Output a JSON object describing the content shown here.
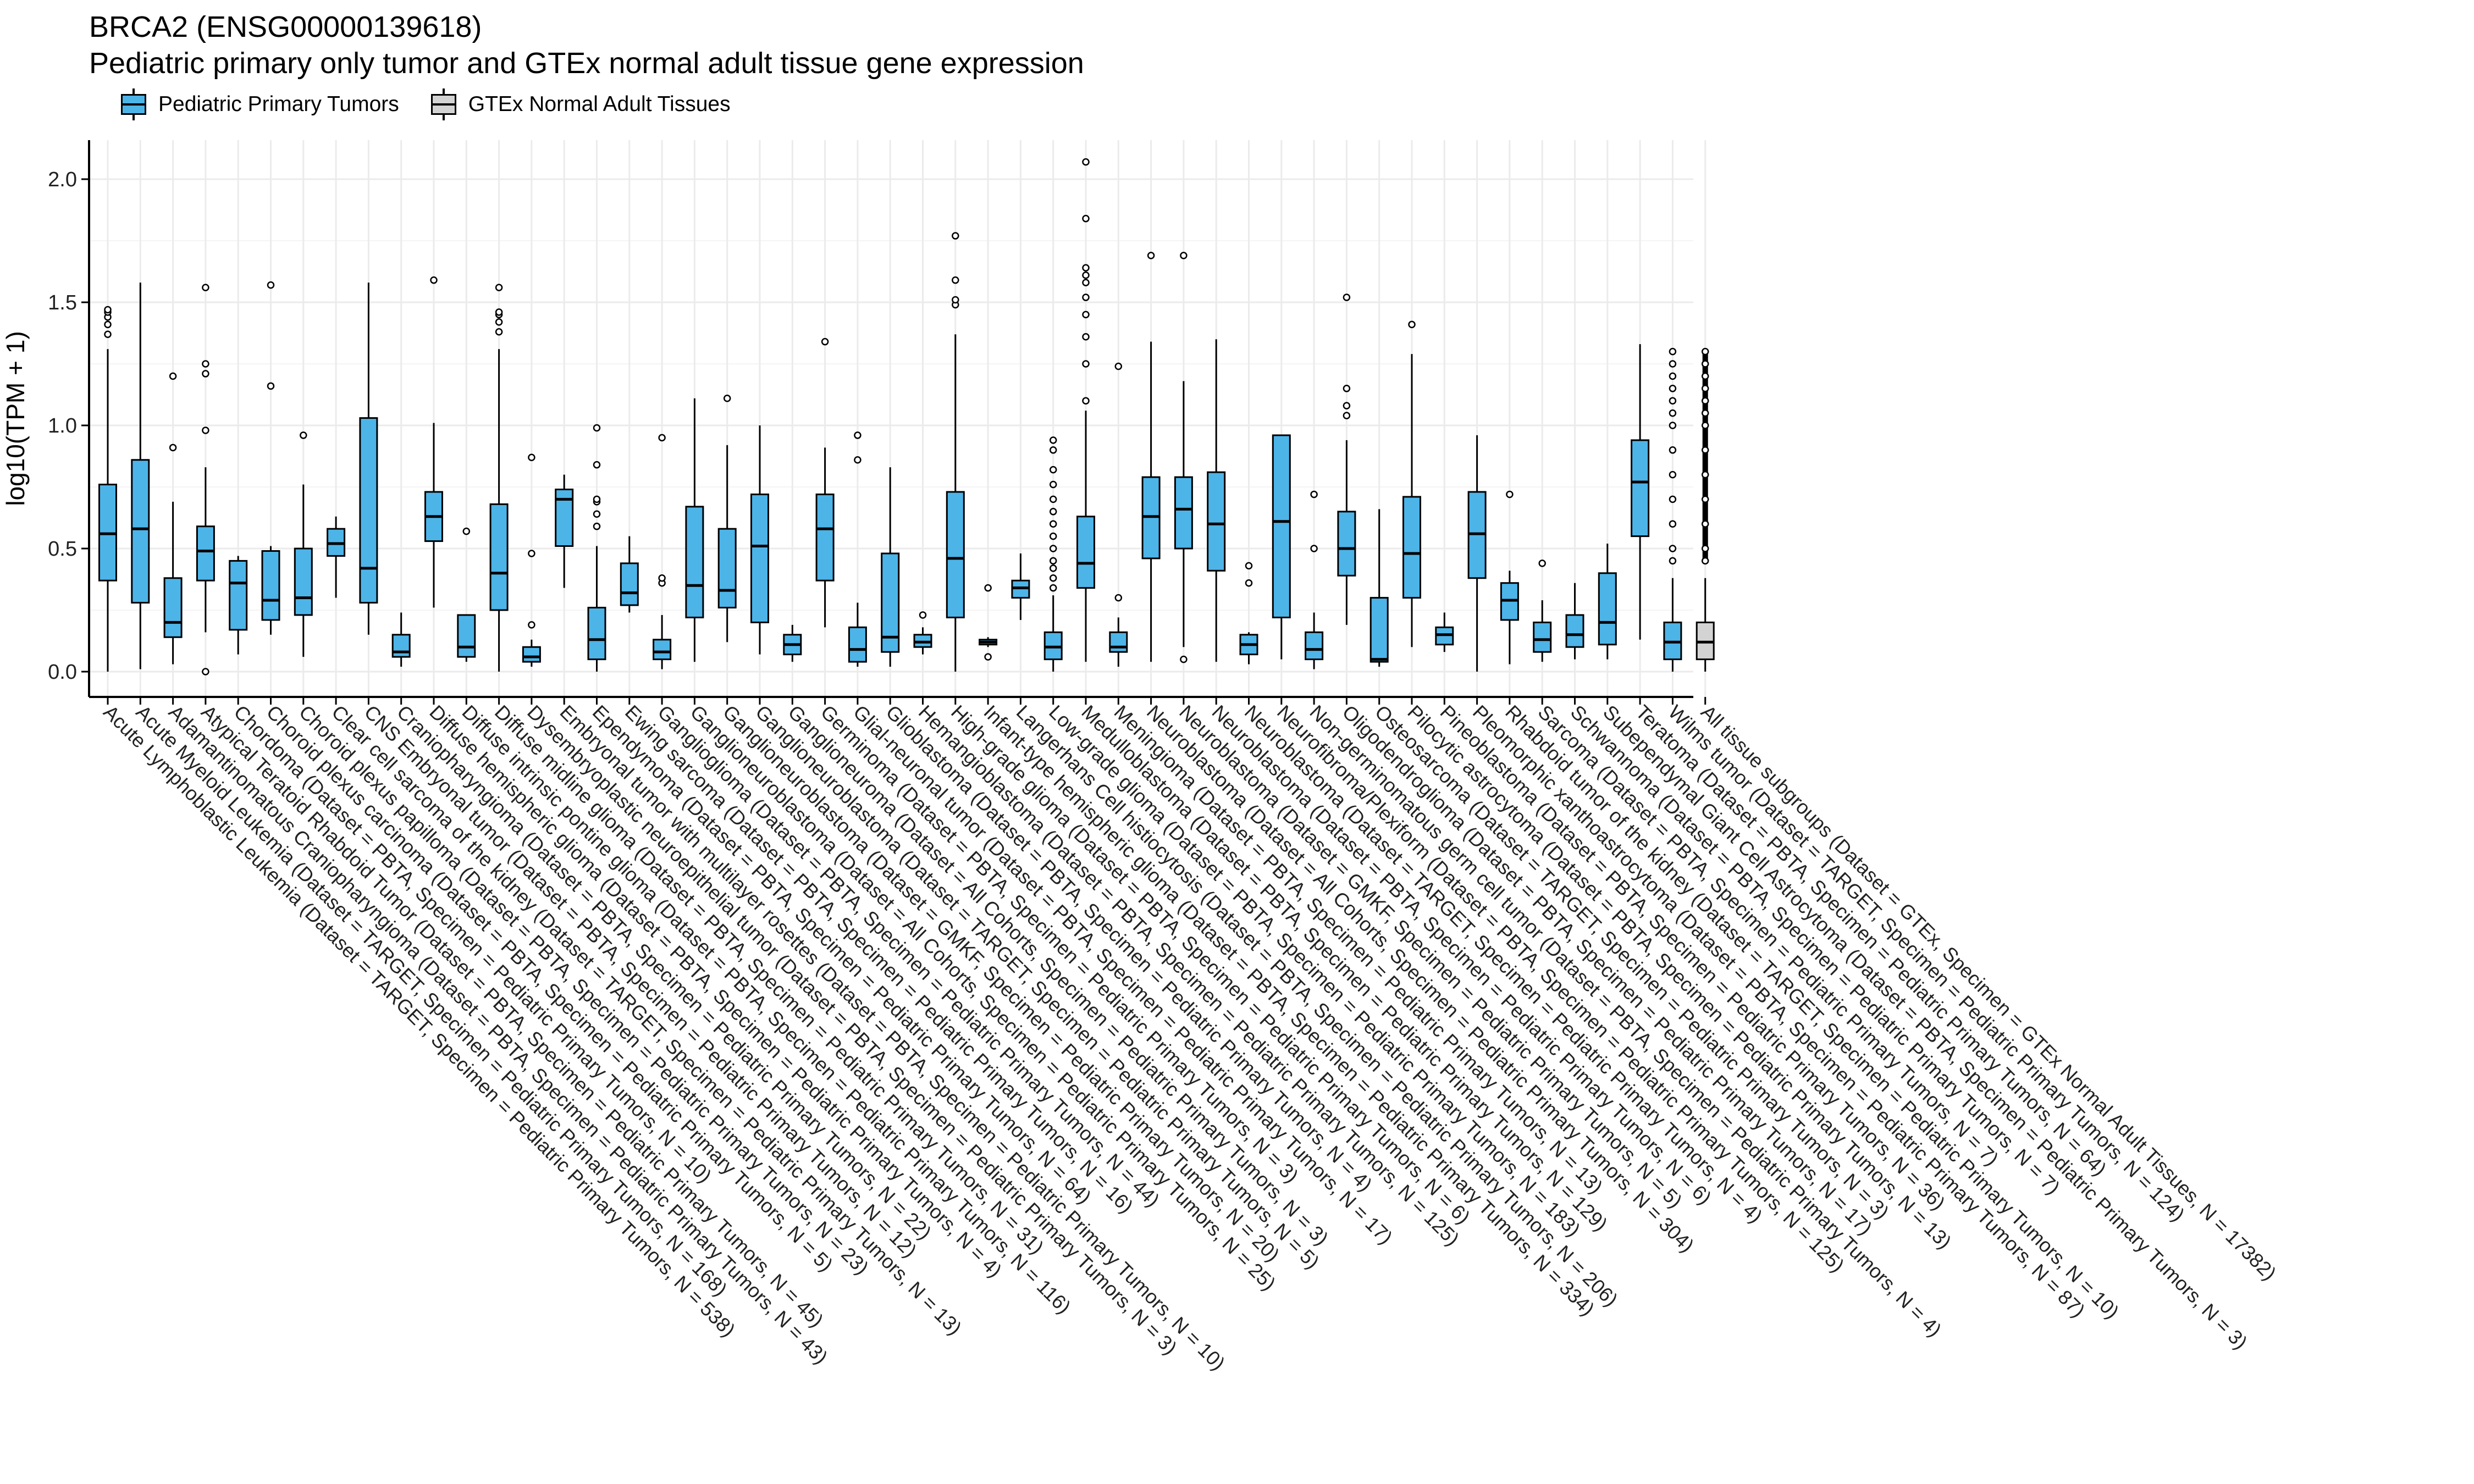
{
  "title_lines": [
    "BRCA2 (ENSG00000139618)",
    "Pediatric primary only tumor and GTEx normal adult tissue gene expression"
  ],
  "legend": [
    {
      "label": "Pediatric Primary Tumors",
      "color": "#4DB4E8"
    },
    {
      "label": "GTEx Normal Adult Tissues",
      "color": "#D3D3D3"
    }
  ],
  "chart_data": {
    "type": "box",
    "ylabel": "log10(TPM + 1)",
    "ylim": [
      -0.1,
      2.15
    ],
    "yticks": [
      0.0,
      0.5,
      1.0,
      1.5,
      2.0
    ],
    "ytick_labels": [
      "0.0",
      "0.5",
      "1.0",
      "1.5",
      "2.0"
    ],
    "grid": true,
    "boxes": [
      {
        "label": "Acute Lymphoblastic Leukemia (Dataset = TARGET, Specimen = Pediatric Primary Tumors, N = 538)",
        "group": "tumor",
        "min": 0.0,
        "q1": 0.37,
        "median": 0.56,
        "q3": 0.76,
        "max": 1.31,
        "outliers": [
          1.37,
          1.41,
          1.44,
          1.46,
          1.47
        ]
      },
      {
        "label": "Acute Myeloid Leukemia (Dataset = TARGET, Specimen = Pediatric Primary Tumors, N = 168)",
        "group": "tumor",
        "min": 0.01,
        "q1": 0.28,
        "median": 0.58,
        "q3": 0.86,
        "max": 1.58,
        "outliers": []
      },
      {
        "label": "Adamantinomatous Craniopharyngioma (Dataset = PBTA, Specimen = Pediatric Primary Tumors, N = 43)",
        "group": "tumor",
        "min": 0.03,
        "q1": 0.14,
        "median": 0.2,
        "q3": 0.38,
        "max": 0.69,
        "outliers": [
          0.91,
          1.2
        ]
      },
      {
        "label": "Atypical Teratoid Rhabdoid Tumor (Dataset = PBTA, Specimen = Pediatric Primary Tumors, N = 45)",
        "group": "tumor",
        "min": 0.16,
        "q1": 0.37,
        "median": 0.49,
        "q3": 0.59,
        "max": 0.83,
        "outliers": [
          0.0,
          0.98,
          1.21,
          1.25,
          1.56
        ]
      },
      {
        "label": "Chordoma (Dataset = PBTA, Specimen = Pediatric Primary Tumors, N = 10)",
        "group": "tumor",
        "min": 0.07,
        "q1": 0.17,
        "median": 0.36,
        "q3": 0.45,
        "max": 0.47,
        "outliers": []
      },
      {
        "label": "Choroid plexus carcinoma (Dataset = PBTA, Specimen = Pediatric Primary Tumors, N = 5)",
        "group": "tumor",
        "min": 0.15,
        "q1": 0.21,
        "median": 0.29,
        "q3": 0.49,
        "max": 0.51,
        "outliers": [
          1.16,
          1.57
        ]
      },
      {
        "label": "Choroid plexus papilloma (Dataset = PBTA, Specimen = Pediatric Primary Tumors, N = 23)",
        "group": "tumor",
        "min": 0.06,
        "q1": 0.23,
        "median": 0.3,
        "q3": 0.5,
        "max": 0.76,
        "outliers": [
          0.96
        ]
      },
      {
        "label": "Clear cell sarcoma of the kidney (Dataset = TARGET, Specimen = Pediatric Primary Tumors, N = 13)",
        "group": "tumor",
        "min": 0.3,
        "q1": 0.47,
        "median": 0.52,
        "q3": 0.58,
        "max": 0.63,
        "outliers": []
      },
      {
        "label": "CNS Embryonal tumor (Dataset = PBTA, Specimen = Pediatric Primary Tumors, N = 12)",
        "group": "tumor",
        "min": 0.15,
        "q1": 0.28,
        "median": 0.42,
        "q3": 1.03,
        "max": 1.58,
        "outliers": []
      },
      {
        "label": "Craniopharyngioma (Dataset = PBTA, Specimen = Pediatric Primary Tumors, N = 22)",
        "group": "tumor",
        "min": 0.02,
        "q1": 0.06,
        "median": 0.08,
        "q3": 0.15,
        "max": 0.24,
        "outliers": []
      },
      {
        "label": "Diffuse hemispheric glioma (Dataset = PBTA, Specimen = Pediatric Primary Tumors, N = 4)",
        "group": "tumor",
        "min": 0.26,
        "q1": 0.53,
        "median": 0.63,
        "q3": 0.73,
        "max": 1.01,
        "outliers": [
          1.59
        ]
      },
      {
        "label": "Diffuse intrinsic pontine glioma (Dataset = PBTA, Specimen = Pediatric Primary Tumors, N = 116)",
        "group": "tumor",
        "min": 0.04,
        "q1": 0.06,
        "median": 0.1,
        "q3": 0.23,
        "max": 0.23,
        "outliers": [
          0.57
        ]
      },
      {
        "label": "Diffuse midline glioma (Dataset = PBTA, Specimen = Pediatric Primary Tumors, N = 31)",
        "group": "tumor",
        "min": 0.0,
        "q1": 0.25,
        "median": 0.4,
        "q3": 0.68,
        "max": 1.31,
        "outliers": [
          1.38,
          1.42,
          1.45,
          1.46,
          1.56
        ]
      },
      {
        "label": "Dysembryoplastic neuroepithelial tumor (Dataset = PBTA, Specimen = Pediatric Primary Tumors, N = 3)",
        "group": "tumor",
        "min": 0.02,
        "q1": 0.04,
        "median": 0.06,
        "q3": 0.1,
        "max": 0.13,
        "outliers": [
          0.19,
          0.48,
          0.87
        ]
      },
      {
        "label": "Embryonal tumor with multilayer rosettes (Dataset = PBTA, Specimen = Pediatric Primary Tumors, N = 10)",
        "group": "tumor",
        "min": 0.34,
        "q1": 0.51,
        "median": 0.7,
        "q3": 0.74,
        "max": 0.8,
        "outliers": []
      },
      {
        "label": "Ependymoma (Dataset = PBTA, Specimen = Pediatric Primary Tumors, N = 64)",
        "group": "tumor",
        "min": 0.0,
        "q1": 0.05,
        "median": 0.13,
        "q3": 0.26,
        "max": 0.51,
        "outliers": [
          0.59,
          0.64,
          0.69,
          0.7,
          0.84,
          0.99
        ]
      },
      {
        "label": "Ewing sarcoma (Dataset = PBTA, Specimen = Pediatric Primary Tumors, N = 16)",
        "group": "tumor",
        "min": 0.24,
        "q1": 0.27,
        "median": 0.32,
        "q3": 0.44,
        "max": 0.55,
        "outliers": []
      },
      {
        "label": "Ganglioglioma (Dataset = PBTA, Specimen = Pediatric Primary Tumors, N = 44)",
        "group": "tumor",
        "min": 0.01,
        "q1": 0.05,
        "median": 0.08,
        "q3": 0.13,
        "max": 0.23,
        "outliers": [
          0.36,
          0.38,
          0.95
        ]
      },
      {
        "label": "Ganglioneuroblastoma (Dataset = All Cohorts, Specimen = Pediatric Primary Tumors, N = 25)",
        "group": "tumor",
        "min": 0.04,
        "q1": 0.22,
        "median": 0.35,
        "q3": 0.67,
        "max": 1.11,
        "outliers": []
      },
      {
        "label": "Ganglioneuroblastoma (Dataset = GMKF, Specimen = Pediatric Primary Tumors, N = 20)",
        "group": "tumor",
        "min": 0.12,
        "q1": 0.26,
        "median": 0.33,
        "q3": 0.58,
        "max": 0.92,
        "outliers": [
          1.11
        ]
      },
      {
        "label": "Ganglioneuroblastoma (Dataset = TARGET, Specimen = Pediatric Primary Tumors, N = 5)",
        "group": "tumor",
        "min": 0.07,
        "q1": 0.2,
        "median": 0.51,
        "q3": 0.72,
        "max": 1.0,
        "outliers": []
      },
      {
        "label": "Ganglioneuroma (Dataset = All Cohorts, Specimen = Pediatric Primary Tumors, N = 3)",
        "group": "tumor",
        "min": 0.04,
        "q1": 0.07,
        "median": 0.11,
        "q3": 0.15,
        "max": 0.19,
        "outliers": []
      },
      {
        "label": "Germinoma (Dataset = PBTA, Specimen = Pediatric Primary Tumors, N = 3)",
        "group": "tumor",
        "min": 0.18,
        "q1": 0.37,
        "median": 0.58,
        "q3": 0.72,
        "max": 0.91,
        "outliers": [
          1.34
        ]
      },
      {
        "label": "Glial-neuronal tumor (Dataset = PBTA, Specimen = Pediatric Primary Tumors, N = 17)",
        "group": "tumor",
        "min": 0.02,
        "q1": 0.04,
        "median": 0.09,
        "q3": 0.18,
        "max": 0.28,
        "outliers": [
          0.86,
          0.96
        ]
      },
      {
        "label": "Glioblastoma (Dataset = PBTA, Specimen = Pediatric Primary Tumors, N = 4)",
        "group": "tumor",
        "min": 0.02,
        "q1": 0.08,
        "median": 0.14,
        "q3": 0.48,
        "max": 0.83,
        "outliers": []
      },
      {
        "label": "Hemangioblastoma (Dataset = PBTA, Specimen = Pediatric Primary Tumors, N = 125)",
        "group": "tumor",
        "min": 0.07,
        "q1": 0.1,
        "median": 0.12,
        "q3": 0.15,
        "max": 0.18,
        "outliers": [
          0.23
        ]
      },
      {
        "label": "High-grade glioma (Dataset = PBTA, Specimen = Pediatric Primary Tumors, N = 6)",
        "group": "tumor",
        "min": 0.0,
        "q1": 0.22,
        "median": 0.46,
        "q3": 0.73,
        "max": 1.37,
        "outliers": [
          1.49,
          1.51,
          1.59,
          1.77
        ]
      },
      {
        "label": "Infant-type hemispheric glioma (Dataset = PBTA, Specimen = Pediatric Primary Tumors, N = 334)",
        "group": "tumor",
        "min": 0.1,
        "q1": 0.11,
        "median": 0.12,
        "q3": 0.13,
        "max": 0.14,
        "outliers": [
          0.06,
          0.34
        ]
      },
      {
        "label": "Langerhans Cell histiocytosis (Dataset = PBTA, Specimen = Pediatric Primary Tumors, N = 206)",
        "group": "tumor",
        "min": 0.21,
        "q1": 0.3,
        "median": 0.34,
        "q3": 0.37,
        "max": 0.48,
        "outliers": []
      },
      {
        "label": "Low-grade glioma (Dataset = PBTA, Specimen = Pediatric Primary Tumors, N = 183)",
        "group": "tumor",
        "min": 0.0,
        "q1": 0.05,
        "median": 0.1,
        "q3": 0.16,
        "max": 0.31,
        "outliers": [
          0.34,
          0.38,
          0.42,
          0.45,
          0.5,
          0.55,
          0.6,
          0.65,
          0.7,
          0.76,
          0.82,
          0.9,
          0.94
        ]
      },
      {
        "label": "Medulloblastoma (Dataset = PBTA, Specimen = Pediatric Primary Tumors, N = 129)",
        "group": "tumor",
        "min": 0.04,
        "q1": 0.34,
        "median": 0.44,
        "q3": 0.63,
        "max": 1.06,
        "outliers": [
          1.1,
          1.25,
          1.36,
          1.45,
          1.52,
          1.58,
          1.61,
          1.64,
          1.84,
          2.07
        ]
      },
      {
        "label": "Meningioma (Dataset = PBTA, Specimen = Pediatric Primary Tumors, N = 13)",
        "group": "tumor",
        "min": 0.02,
        "q1": 0.08,
        "median": 0.1,
        "q3": 0.16,
        "max": 0.22,
        "outliers": [
          0.3,
          1.24
        ]
      },
      {
        "label": "Neuroblastoma (Dataset = All Cohorts, Specimen = Pediatric Primary Tumors, N = 304)",
        "group": "tumor",
        "min": 0.04,
        "q1": 0.46,
        "median": 0.63,
        "q3": 0.79,
        "max": 1.34,
        "outliers": [
          1.69
        ]
      },
      {
        "label": "Neuroblastoma (Dataset = GMKF, Specimen = Pediatric Primary Tumors, N = 5)",
        "group": "tumor",
        "min": 0.1,
        "q1": 0.5,
        "median": 0.66,
        "q3": 0.79,
        "max": 1.18,
        "outliers": [
          0.05,
          1.69
        ]
      },
      {
        "label": "Neuroblastoma (Dataset = PBTA, Specimen = Pediatric Primary Tumors, N = 6)",
        "group": "tumor",
        "min": 0.04,
        "q1": 0.41,
        "median": 0.6,
        "q3": 0.81,
        "max": 1.35,
        "outliers": []
      },
      {
        "label": "Neuroblastoma (Dataset = TARGET, Specimen = Pediatric Primary Tumors, N = 4)",
        "group": "tumor",
        "min": 0.03,
        "q1": 0.07,
        "median": 0.11,
        "q3": 0.15,
        "max": 0.16,
        "outliers": [
          0.36,
          0.43
        ]
      },
      {
        "label": "Neurofibroma/Plexiform (Dataset = PBTA, Specimen = Pediatric Primary Tumors, N = 125)",
        "group": "tumor",
        "min": 0.05,
        "q1": 0.22,
        "median": 0.61,
        "q3": 0.96,
        "max": 0.96,
        "outliers": []
      },
      {
        "label": "Non-germinomatous germ cell tumor (Dataset = PBTA, Specimen = Pediatric Primary Tumors, N = 4)",
        "group": "tumor",
        "min": 0.01,
        "q1": 0.05,
        "median": 0.09,
        "q3": 0.16,
        "max": 0.24,
        "outliers": [
          0.5,
          0.72
        ]
      },
      {
        "label": "Oligodendroglioma (Dataset = PBTA, Specimen = Pediatric Primary Tumors, N = 17)",
        "group": "tumor",
        "min": 0.19,
        "q1": 0.39,
        "median": 0.5,
        "q3": 0.65,
        "max": 0.94,
        "outliers": [
          1.04,
          1.08,
          1.15,
          1.52
        ]
      },
      {
        "label": "Osteosarcoma (Dataset = TARGET, Specimen = Pediatric Primary Tumors, N = 3)",
        "group": "tumor",
        "min": 0.02,
        "q1": 0.04,
        "median": 0.05,
        "q3": 0.3,
        "max": 0.66,
        "outliers": []
      },
      {
        "label": "Pilocytic astrocytoma (Dataset = PBTA, Specimen = Pediatric Primary Tumors, N = 13)",
        "group": "tumor",
        "min": 0.1,
        "q1": 0.3,
        "median": 0.48,
        "q3": 0.71,
        "max": 1.29,
        "outliers": [
          1.41
        ]
      },
      {
        "label": "Pineoblastoma (Dataset = PBTA, Specimen = Pediatric Primary Tumors, N = 36)",
        "group": "tumor",
        "min": 0.08,
        "q1": 0.11,
        "median": 0.15,
        "q3": 0.18,
        "max": 0.24,
        "outliers": []
      },
      {
        "label": "Pleomorphic xanthoastrocytoma (Dataset = PBTA, Specimen = Pediatric Primary Tumors, N = 87)",
        "group": "tumor",
        "min": 0.0,
        "q1": 0.38,
        "median": 0.56,
        "q3": 0.73,
        "max": 0.96,
        "outliers": []
      },
      {
        "label": "Rhabdoid tumor of the kidney (Dataset = TARGET, Specimen = Pediatric Primary Tumors, N = 10)",
        "group": "tumor",
        "min": 0.03,
        "q1": 0.21,
        "median": 0.29,
        "q3": 0.36,
        "max": 0.41,
        "outliers": [
          0.72
        ]
      },
      {
        "label": "Sarcoma (Dataset = PBTA, Specimen = Pediatric Primary Tumors, N = 7)",
        "group": "tumor",
        "min": 0.04,
        "q1": 0.08,
        "median": 0.13,
        "q3": 0.2,
        "max": 0.29,
        "outliers": [
          0.44
        ]
      },
      {
        "label": "Schwannoma (Dataset = PBTA, Specimen = Pediatric Primary Tumors, N = 7)",
        "group": "tumor",
        "min": 0.05,
        "q1": 0.1,
        "median": 0.15,
        "q3": 0.23,
        "max": 0.36,
        "outliers": []
      },
      {
        "label": "Subependymal Giant Cell Astrocytoma (Dataset = PBTA, Specimen = Pediatric Primary Tumors, N = 3)",
        "group": "tumor",
        "min": 0.05,
        "q1": 0.11,
        "median": 0.2,
        "q3": 0.4,
        "max": 0.52,
        "outliers": []
      },
      {
        "label": "Teratoma (Dataset = PBTA, Specimen = Pediatric Primary Tumors, N = 64)",
        "group": "tumor",
        "min": 0.13,
        "q1": 0.55,
        "median": 0.77,
        "q3": 0.94,
        "max": 1.33,
        "outliers": []
      },
      {
        "label": "Wilms tumor (Dataset = TARGET, Specimen = Pediatric Primary Tumors, N = 124)",
        "group": "tumor",
        "min": 0.0,
        "q1": 0.05,
        "median": 0.12,
        "q3": 0.2,
        "max": 0.38,
        "outliers": [
          0.45,
          0.5,
          0.6,
          0.7,
          0.8,
          0.9,
          1.0,
          1.05,
          1.1,
          1.15,
          1.2,
          1.25,
          1.3
        ]
      },
      {
        "label": "All tissue subgroups (Dataset = GTEx, Specimen = GTEx Normal Adult Tissues, N = 17382)",
        "group": "gtex",
        "min": 0.0,
        "q1": 0.05,
        "median": 0.12,
        "q3": 0.2,
        "max": 0.38,
        "outliers": [
          0.45,
          0.5,
          0.6,
          0.7,
          0.8,
          0.9,
          1.0,
          1.05,
          1.1,
          1.15,
          1.2,
          1.25,
          1.3
        ]
      }
    ]
  }
}
